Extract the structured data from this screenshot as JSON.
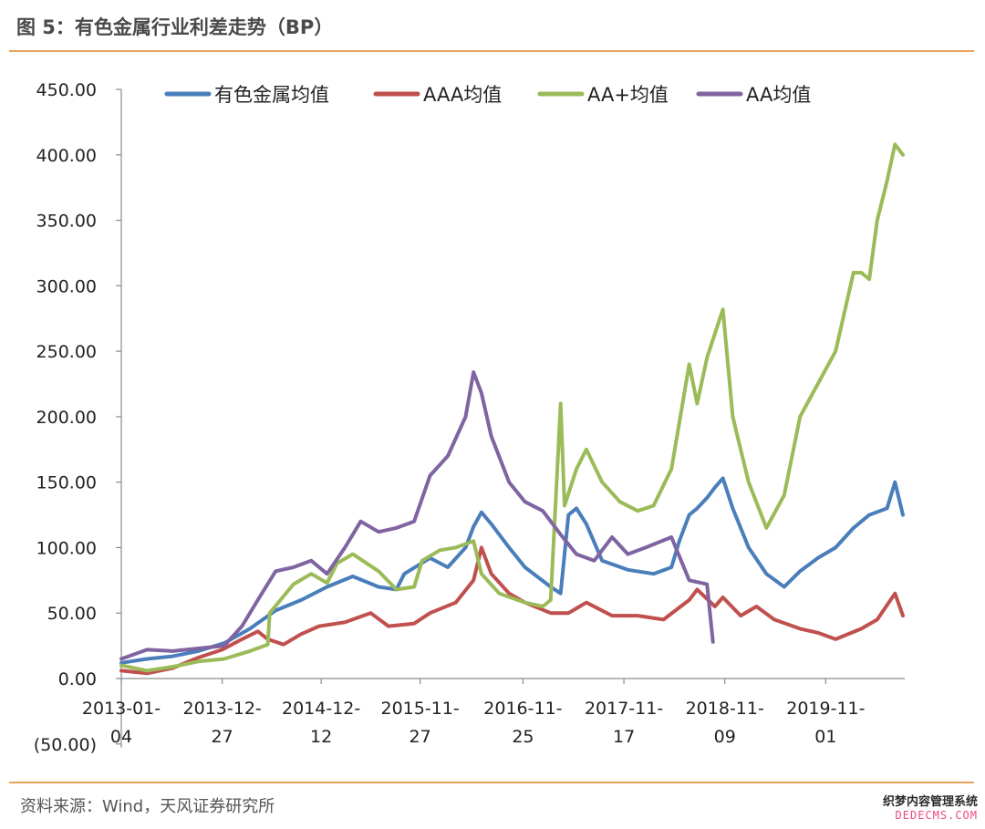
{
  "header": {
    "title": "图 5：有色金属行业利差走势（BP）",
    "source": "资料来源：Wind，天风证券研究所",
    "watermark_line1": "织梦内容管理系统",
    "watermark_line2": "DEDECMS.COM"
  },
  "colors": {
    "accent_rule": "#e8a25a",
    "negative_label": "#c00000"
  },
  "chart_data": {
    "type": "line",
    "title": "",
    "xlabel": "",
    "ylabel": "",
    "ylim": [
      -50,
      450
    ],
    "y_ticks": [
      {
        "value": 450,
        "label": "450.00"
      },
      {
        "value": 400,
        "label": "400.00"
      },
      {
        "value": 350,
        "label": "350.00"
      },
      {
        "value": 300,
        "label": "300.00"
      },
      {
        "value": 250,
        "label": "250.00"
      },
      {
        "value": 200,
        "label": "200.00"
      },
      {
        "value": 150,
        "label": "150.00"
      },
      {
        "value": 100,
        "label": "100.00"
      },
      {
        "value": 50,
        "label": "50.00"
      },
      {
        "value": 0,
        "label": "0.00"
      },
      {
        "value": -50,
        "label": "(50.00)"
      }
    ],
    "x_ticks": [
      {
        "line1": "2013-01-",
        "line2": "04",
        "date": "2013-01-04"
      },
      {
        "line1": "2013-12-",
        "line2": "27",
        "date": "2013-12-27"
      },
      {
        "line1": "2014-12-",
        "line2": "12",
        "date": "2014-12-12"
      },
      {
        "line1": "2015-11-",
        "line2": "27",
        "date": "2015-11-27"
      },
      {
        "line1": "2016-11-",
        "line2": "25",
        "date": "2016-11-25"
      },
      {
        "line1": "2017-11-",
        "line2": "17",
        "date": "2017-11-17"
      },
      {
        "line1": "2018-11-",
        "line2": "09",
        "date": "2018-11-09"
      },
      {
        "line1": "2019-11-",
        "line2": "01",
        "date": "2019-11-01"
      }
    ],
    "x_range": [
      "2013-01-04",
      "2020-07-31"
    ],
    "grid": false,
    "legend_position": "top",
    "series": [
      {
        "name": "有色金属均值",
        "color": "#4a7ebb",
        "points": [
          [
            "2013-01-04",
            12
          ],
          [
            "2013-04-05",
            15
          ],
          [
            "2013-07-05",
            17
          ],
          [
            "2013-10-04",
            21
          ],
          [
            "2014-01-03",
            27
          ],
          [
            "2014-04-04",
            38
          ],
          [
            "2014-07-04",
            52
          ],
          [
            "2014-10-03",
            60
          ],
          [
            "2015-01-02",
            70
          ],
          [
            "2015-04-03",
            78
          ],
          [
            "2015-07-03",
            70
          ],
          [
            "2015-09-04",
            68
          ],
          [
            "2015-10-02",
            80
          ],
          [
            "2016-01-01",
            92
          ],
          [
            "2016-03-04",
            85
          ],
          [
            "2016-05-06",
            100
          ],
          [
            "2016-06-03",
            116
          ],
          [
            "2016-07-01",
            127
          ],
          [
            "2016-08-05",
            118
          ],
          [
            "2016-10-07",
            100
          ],
          [
            "2016-12-02",
            85
          ],
          [
            "2017-03-03",
            70
          ],
          [
            "2017-04-07",
            65
          ],
          [
            "2017-05-05",
            125
          ],
          [
            "2017-06-02",
            130
          ],
          [
            "2017-07-07",
            118
          ],
          [
            "2017-09-01",
            90
          ],
          [
            "2017-12-01",
            83
          ],
          [
            "2018-03-02",
            80
          ],
          [
            "2018-05-04",
            85
          ],
          [
            "2018-06-01",
            105
          ],
          [
            "2018-07-06",
            125
          ],
          [
            "2018-08-03",
            130
          ],
          [
            "2018-09-07",
            138
          ],
          [
            "2018-10-05",
            146
          ],
          [
            "2018-11-02",
            153
          ],
          [
            "2018-12-07",
            130
          ],
          [
            "2019-02-01",
            100
          ],
          [
            "2019-04-05",
            80
          ],
          [
            "2019-06-07",
            70
          ],
          [
            "2019-08-02",
            82
          ],
          [
            "2019-10-04",
            92
          ],
          [
            "2019-12-06",
            100
          ],
          [
            "2020-02-07",
            115
          ],
          [
            "2020-04-03",
            125
          ],
          [
            "2020-06-05",
            130
          ],
          [
            "2020-07-03",
            150
          ],
          [
            "2020-07-31",
            125
          ]
        ]
      },
      {
        "name": "AAA均值",
        "color": "#c0504d",
        "points": [
          [
            "2013-01-04",
            6
          ],
          [
            "2013-04-05",
            4
          ],
          [
            "2013-07-05",
            8
          ],
          [
            "2013-10-04",
            16
          ],
          [
            "2013-12-27",
            22
          ],
          [
            "2014-03-07",
            30
          ],
          [
            "2014-05-02",
            36
          ],
          [
            "2014-06-06",
            30
          ],
          [
            "2014-08-01",
            26
          ],
          [
            "2014-10-03",
            34
          ],
          [
            "2014-12-05",
            40
          ],
          [
            "2015-03-06",
            43
          ],
          [
            "2015-06-05",
            50
          ],
          [
            "2015-08-07",
            40
          ],
          [
            "2015-11-06",
            42
          ],
          [
            "2016-01-01",
            50
          ],
          [
            "2016-04-01",
            58
          ],
          [
            "2016-06-03",
            75
          ],
          [
            "2016-07-01",
            100
          ],
          [
            "2016-08-05",
            80
          ],
          [
            "2016-10-07",
            65
          ],
          [
            "2016-12-02",
            58
          ],
          [
            "2017-03-03",
            50
          ],
          [
            "2017-05-05",
            50
          ],
          [
            "2017-07-07",
            58
          ],
          [
            "2017-10-06",
            48
          ],
          [
            "2018-01-05",
            48
          ],
          [
            "2018-04-06",
            45
          ],
          [
            "2018-07-06",
            60
          ],
          [
            "2018-08-03",
            68
          ],
          [
            "2018-10-05",
            55
          ],
          [
            "2018-11-02",
            62
          ],
          [
            "2019-01-04",
            48
          ],
          [
            "2019-03-01",
            55
          ],
          [
            "2019-05-03",
            45
          ],
          [
            "2019-08-02",
            38
          ],
          [
            "2019-10-04",
            35
          ],
          [
            "2019-12-06",
            30
          ],
          [
            "2020-03-06",
            38
          ],
          [
            "2020-05-01",
            45
          ],
          [
            "2020-07-03",
            65
          ],
          [
            "2020-07-31",
            48
          ]
        ]
      },
      {
        "name": "AA+均值",
        "color": "#9bbb59",
        "points": [
          [
            "2013-01-04",
            10
          ],
          [
            "2013-04-05",
            6
          ],
          [
            "2013-07-05",
            9
          ],
          [
            "2013-10-04",
            13
          ],
          [
            "2014-01-03",
            15
          ],
          [
            "2014-04-04",
            21
          ],
          [
            "2014-06-06",
            26
          ],
          [
            "2014-06-13",
            50
          ],
          [
            "2014-09-05",
            72
          ],
          [
            "2014-11-07",
            80
          ],
          [
            "2015-01-02",
            73
          ],
          [
            "2015-02-06",
            88
          ],
          [
            "2015-04-03",
            95
          ],
          [
            "2015-07-03",
            82
          ],
          [
            "2015-09-04",
            68
          ],
          [
            "2015-11-06",
            70
          ],
          [
            "2015-12-04",
            90
          ],
          [
            "2016-02-05",
            98
          ],
          [
            "2016-04-01",
            100
          ],
          [
            "2016-06-03",
            105
          ],
          [
            "2016-07-01",
            80
          ],
          [
            "2016-09-02",
            65
          ],
          [
            "2016-12-02",
            58
          ],
          [
            "2017-02-03",
            55
          ],
          [
            "2017-03-03",
            60
          ],
          [
            "2017-04-07",
            210
          ],
          [
            "2017-04-21",
            132
          ],
          [
            "2017-06-02",
            160
          ],
          [
            "2017-07-07",
            175
          ],
          [
            "2017-09-01",
            150
          ],
          [
            "2017-11-03",
            135
          ],
          [
            "2018-01-05",
            128
          ],
          [
            "2018-03-02",
            132
          ],
          [
            "2018-05-04",
            160
          ],
          [
            "2018-07-06",
            240
          ],
          [
            "2018-08-03",
            210
          ],
          [
            "2018-09-07",
            245
          ],
          [
            "2018-11-02",
            282
          ],
          [
            "2018-12-07",
            200
          ],
          [
            "2019-02-01",
            150
          ],
          [
            "2019-04-05",
            115
          ],
          [
            "2019-06-07",
            140
          ],
          [
            "2019-08-02",
            200
          ],
          [
            "2019-10-04",
            225
          ],
          [
            "2019-12-06",
            250
          ],
          [
            "2020-02-07",
            310
          ],
          [
            "2020-03-06",
            310
          ],
          [
            "2020-04-03",
            305
          ],
          [
            "2020-05-01",
            350
          ],
          [
            "2020-06-05",
            380
          ],
          [
            "2020-07-03",
            408
          ],
          [
            "2020-07-31",
            400
          ]
        ]
      },
      {
        "name": "AA均值",
        "color": "#8064a2",
        "points": [
          [
            "2013-01-04",
            15
          ],
          [
            "2013-04-05",
            22
          ],
          [
            "2013-07-05",
            21
          ],
          [
            "2013-10-04",
            23
          ],
          [
            "2014-01-03",
            25
          ],
          [
            "2014-03-07",
            40
          ],
          [
            "2014-05-02",
            60
          ],
          [
            "2014-07-04",
            82
          ],
          [
            "2014-09-05",
            85
          ],
          [
            "2014-11-07",
            90
          ],
          [
            "2015-01-02",
            80
          ],
          [
            "2015-03-06",
            100
          ],
          [
            "2015-05-01",
            120
          ],
          [
            "2015-07-03",
            112
          ],
          [
            "2015-09-04",
            115
          ],
          [
            "2015-11-06",
            120
          ],
          [
            "2016-01-01",
            155
          ],
          [
            "2016-03-04",
            170
          ],
          [
            "2016-05-06",
            200
          ],
          [
            "2016-06-03",
            234
          ],
          [
            "2016-07-01",
            218
          ],
          [
            "2016-08-05",
            185
          ],
          [
            "2016-10-07",
            150
          ],
          [
            "2016-12-02",
            135
          ],
          [
            "2017-02-03",
            128
          ],
          [
            "2017-04-07",
            110
          ],
          [
            "2017-06-02",
            95
          ],
          [
            "2017-08-04",
            90
          ],
          [
            "2017-10-06",
            108
          ],
          [
            "2017-12-01",
            95
          ],
          [
            "2018-02-02",
            100
          ],
          [
            "2018-05-04",
            108
          ],
          [
            "2018-07-06",
            75
          ],
          [
            "2018-09-07",
            72
          ],
          [
            "2018-09-28",
            28
          ]
        ]
      }
    ]
  }
}
